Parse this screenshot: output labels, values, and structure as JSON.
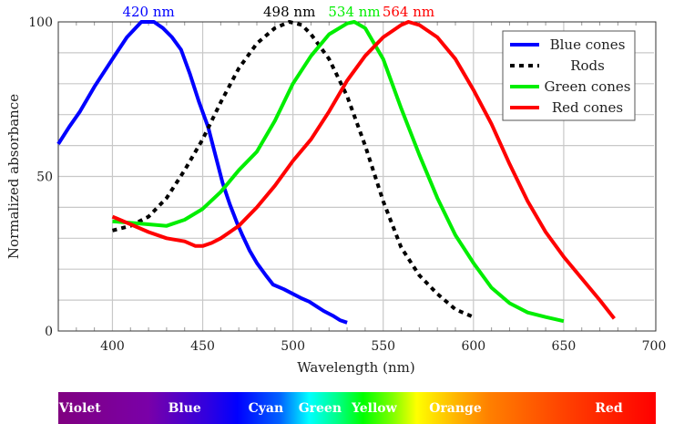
{
  "chart_data": {
    "type": "line",
    "xlabel": "Wavelength (nm)",
    "ylabel": "Normalized absorbance",
    "xlim": [
      370,
      700
    ],
    "ylim": [
      0,
      100
    ],
    "xticks": [
      400,
      450,
      500,
      550,
      600,
      650,
      700
    ],
    "yticks": [
      0,
      50,
      100
    ],
    "grid": {
      "x_major": 50,
      "x_minor": 10,
      "y_major": 10
    },
    "legend_position": "top-right",
    "series": [
      {
        "name": "Blue cones",
        "color": "#0000ff",
        "dash": false,
        "peak_label": "420 nm",
        "peak": 420,
        "x": [
          370,
          376,
          382,
          390,
          400,
          408,
          416,
          423,
          428,
          433,
          438,
          443,
          448,
          453,
          457,
          461,
          465,
          469,
          472,
          476,
          480,
          485,
          489,
          495,
          500,
          505,
          509,
          513,
          517,
          522,
          526,
          530
        ],
        "y": [
          60.5,
          66,
          71,
          79,
          88,
          95,
          100,
          100,
          98,
          95,
          91,
          83,
          74,
          66,
          57,
          48,
          41,
          35,
          31,
          26,
          22,
          18,
          15,
          13.5,
          12,
          10.5,
          9.5,
          8,
          6.5,
          5,
          3.5,
          2.7
        ]
      },
      {
        "name": "Rods",
        "color": "#000000",
        "dash": true,
        "peak_label": "498 nm",
        "peak": 498,
        "x": [
          400,
          410,
          420,
          430,
          440,
          450,
          460,
          470,
          480,
          490,
          498,
          505,
          510,
          520,
          530,
          540,
          550,
          560,
          570,
          580,
          590,
          600
        ],
        "y": [
          32.5,
          34,
          37,
          43,
          52,
          62,
          74,
          85,
          93,
          98,
          100,
          99,
          96,
          88,
          76,
          60,
          42,
          27,
          18,
          12,
          7,
          4.5
        ]
      },
      {
        "name": "Green cones",
        "color": "#00ee00",
        "dash": false,
        "peak_label": "534 nm",
        "peak": 534,
        "x": [
          400,
          410,
          420,
          430,
          440,
          450,
          460,
          470,
          480,
          490,
          500,
          510,
          520,
          530,
          534,
          540,
          550,
          560,
          570,
          580,
          590,
          600,
          610,
          620,
          630,
          640,
          650
        ],
        "y": [
          35.5,
          35,
          34.5,
          34,
          36,
          39.5,
          45,
          52,
          58,
          68,
          80,
          89,
          96,
          99.5,
          100,
          98,
          88,
          72,
          57,
          43,
          31,
          22,
          14,
          9,
          6,
          4.5,
          3.2
        ]
      },
      {
        "name": "Red cones",
        "color": "#ff0000",
        "dash": false,
        "peak_label": "564 nm",
        "peak": 564,
        "x": [
          400,
          410,
          420,
          430,
          440,
          446,
          450,
          455,
          460,
          470,
          480,
          490,
          500,
          510,
          520,
          530,
          540,
          550,
          560,
          564,
          570,
          580,
          590,
          600,
          610,
          620,
          630,
          640,
          650,
          660,
          670,
          678
        ],
        "y": [
          37,
          34.5,
          32,
          30,
          29,
          27.5,
          27.5,
          28.5,
          30,
          34,
          40,
          47,
          55,
          62,
          71,
          81,
          89,
          95,
          99,
          100,
          99,
          95,
          88,
          78,
          67,
          54,
          42,
          32,
          24,
          17,
          10,
          4
        ]
      }
    ]
  },
  "spectrum": {
    "labels": [
      {
        "text": "Violet",
        "nm": 382
      },
      {
        "text": "Blue",
        "nm": 440
      },
      {
        "text": "Cyan",
        "nm": 485
      },
      {
        "text": "Green",
        "nm": 515
      },
      {
        "text": "Yellow",
        "nm": 545
      },
      {
        "text": "Orange",
        "nm": 590
      },
      {
        "text": "Red",
        "nm": 675
      }
    ]
  }
}
